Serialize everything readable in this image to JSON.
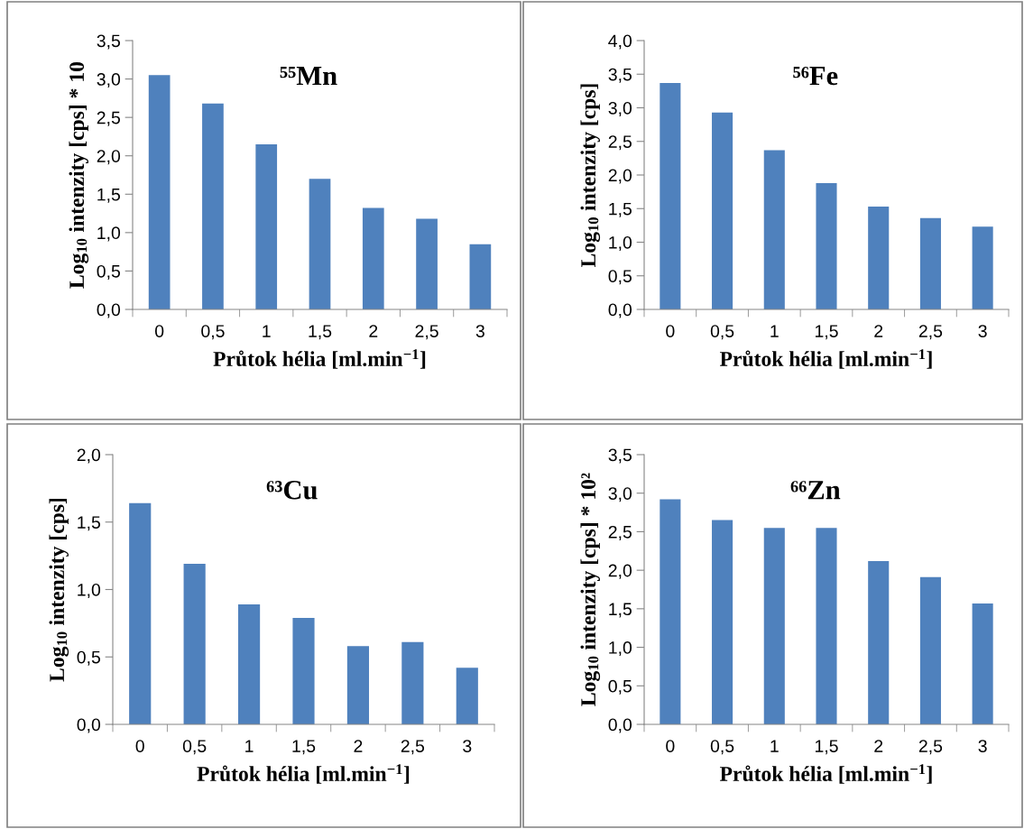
{
  "chart_data": [
    {
      "type": "bar",
      "title": "⁵⁵Mn",
      "xlabel": "Průtok hélia [ml.min$^{−1}$]",
      "ylabel": "Log$_{10}$ intenzity [cps] * 10",
      "categories": [
        "0",
        "0,5",
        "1",
        "1,5",
        "2",
        "2,5",
        "3"
      ],
      "values": [
        3.05,
        2.68,
        2.15,
        1.7,
        1.32,
        1.18,
        0.85
      ],
      "color": "#4f81bd",
      "ylim": [
        0,
        3.5
      ],
      "yticks": [
        {
          "value": 0,
          "label": "0,0"
        },
        {
          "value": 0.5,
          "label": "0,5"
        },
        {
          "value": 1,
          "label": "1,0"
        },
        {
          "value": 1.5,
          "label": "1,5"
        },
        {
          "value": 2,
          "label": "2,0"
        },
        {
          "value": 2.5,
          "label": "2,5"
        },
        {
          "value": 3,
          "label": "3,0"
        },
        {
          "value": 3.5,
          "label": "3,5"
        }
      ],
      "grid": false,
      "legend": false
    },
    {
      "type": "bar",
      "title": "⁵⁶Fe",
      "xlabel": "Průtok hélia [ml.min$^{−1}$]",
      "ylabel": "Log$_{10}$ intenzity [cps]",
      "categories": [
        "0",
        "0,5",
        "1",
        "1,5",
        "2",
        "2,5",
        "3"
      ],
      "values": [
        3.37,
        2.93,
        2.37,
        1.88,
        1.53,
        1.36,
        1.23
      ],
      "color": "#4f81bd",
      "ylim": [
        0,
        4
      ],
      "yticks": [
        {
          "value": 0,
          "label": "0,0"
        },
        {
          "value": 0.5,
          "label": "0,5"
        },
        {
          "value": 1,
          "label": "1,0"
        },
        {
          "value": 1.5,
          "label": "1,5"
        },
        {
          "value": 2,
          "label": "2,0"
        },
        {
          "value": 2.5,
          "label": "2,5"
        },
        {
          "value": 3,
          "label": "3,0"
        },
        {
          "value": 3.5,
          "label": "3,5"
        },
        {
          "value": 4,
          "label": "4,0"
        }
      ],
      "grid": false,
      "legend": false
    },
    {
      "type": "bar",
      "title": "⁶³Cu",
      "xlabel": "Průtok hélia [ml.min$^{−1}$]",
      "ylabel": "Log$_{10}$ intenzity [cps]",
      "categories": [
        "0",
        "0,5",
        "1",
        "1,5",
        "2",
        "2,5",
        "3"
      ],
      "values": [
        1.64,
        1.19,
        0.89,
        0.79,
        0.58,
        0.61,
        0.42
      ],
      "color": "#4f81bd",
      "ylim": [
        0,
        2
      ],
      "yticks": [
        {
          "value": 0,
          "label": "0,0"
        },
        {
          "value": 0.5,
          "label": "0,5"
        },
        {
          "value": 1,
          "label": "1,0"
        },
        {
          "value": 1.5,
          "label": "1,5"
        },
        {
          "value": 2,
          "label": "2,0"
        }
      ],
      "grid": false,
      "legend": false
    },
    {
      "type": "bar",
      "title": "⁶⁶Zn",
      "xlabel": "Průtok hélia [ml.min$^{−1}$]",
      "ylabel": "Log$_{10}$ intenzity [cps] * 10²",
      "categories": [
        "0",
        "0,5",
        "1",
        "1,5",
        "2",
        "2,5",
        "3"
      ],
      "values": [
        2.92,
        2.65,
        2.55,
        2.55,
        2.12,
        1.91,
        1.57
      ],
      "color": "#4f81bd",
      "ylim": [
        0,
        3.5
      ],
      "yticks": [
        {
          "value": 0,
          "label": "0,0"
        },
        {
          "value": 0.5,
          "label": "0,5"
        },
        {
          "value": 1,
          "label": "1,0"
        },
        {
          "value": 1.5,
          "label": "1,5"
        },
        {
          "value": 2,
          "label": "2,0"
        },
        {
          "value": 2.5,
          "label": "2,5"
        },
        {
          "value": 3,
          "label": "3,0"
        },
        {
          "value": 3.5,
          "label": "3,5"
        }
      ],
      "grid": false,
      "legend": false
    }
  ]
}
